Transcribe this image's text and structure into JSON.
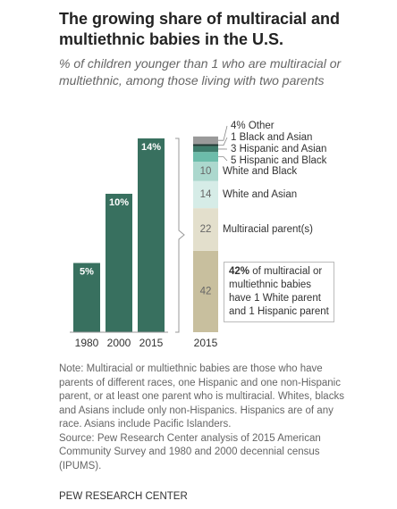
{
  "title": "The growing share of multiracial and multiethnic babies in the U.S.",
  "subtitle": "% of children younger than 1 who are multiracial or multiethnic, among those living with two parents",
  "chart_data": [
    {
      "type": "bar",
      "categories": [
        "1980",
        "2000",
        "2015"
      ],
      "values": [
        5,
        10,
        14
      ],
      "value_labels": [
        "5%",
        "10%",
        "14%"
      ],
      "color": "#38705f"
    },
    {
      "type": "stacked-bar",
      "categories": [
        "2015"
      ],
      "series": [
        {
          "name": null,
          "color": "#c8bf9e",
          "values": [
            42
          ]
        },
        {
          "name": "Multiracial parent(s)",
          "color": "#e3dfcc",
          "values": [
            22
          ]
        },
        {
          "name": "White and Asian",
          "color": "#d6ece7",
          "values": [
            14
          ]
        },
        {
          "name": "White and Black",
          "color": "#acd8ce",
          "values": [
            10
          ]
        },
        {
          "name": "Hispanic and Black",
          "color": "#6cbcaa",
          "values": [
            5
          ]
        },
        {
          "name": "Hispanic and Asian",
          "color": "#3e7b6b",
          "values": [
            3
          ]
        },
        {
          "name": "Black and Asian",
          "color": "#1f3b34",
          "values": [
            1
          ]
        },
        {
          "name": "Other",
          "color": "#9a9a9a",
          "values": [
            4
          ],
          "value_labels": [
            "4%"
          ]
        }
      ],
      "annotation": {
        "bold": "42%",
        "text": "of multiracial or multiethnic babies have 1 White parent and 1 Hispanic parent"
      }
    }
  ],
  "note": "Note: Multiracial or multiethnic babies are those who have parents of different races, one Hispanic and one non-Hispanic parent, or at least one parent who is multiracial. Whites, blacks and Asians include only non-Hispanics. Hispanics are of any race. Asians include Pacific Islanders.",
  "source": "Source: Pew Research Center analysis of 2015 American Community Survey and 1980 and 2000 decennial census (IPUMS).",
  "footer": "PEW RESEARCH CENTER"
}
